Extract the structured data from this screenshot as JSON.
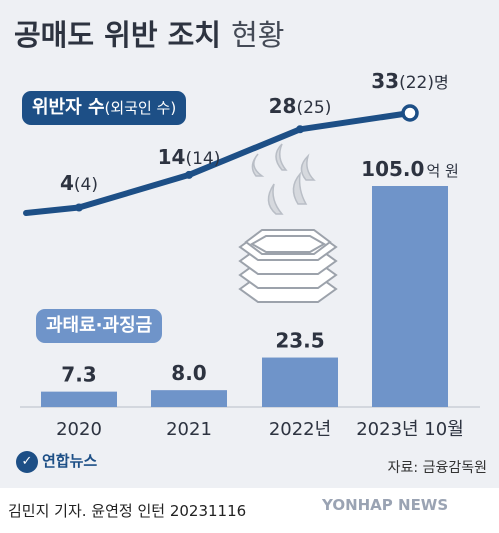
{
  "header": {
    "title_main": "공매도 위반 조치",
    "title_sub": "현황"
  },
  "chart_data": [
    {
      "type": "line",
      "legend_label": "위반자 수",
      "legend_sub": "(외국인 수)",
      "unit": "명",
      "categories": [
        "2020",
        "2021",
        "2022년",
        "2023년 10월"
      ],
      "series": [
        {
          "name": "위반자 수",
          "values": [
            4,
            14,
            28,
            33
          ]
        },
        {
          "name": "외국인 수",
          "values": [
            4,
            14,
            25,
            22
          ]
        }
      ],
      "color": "#1d4f86"
    },
    {
      "type": "bar",
      "legend_label": "과태료·과징금",
      "unit": "억 원",
      "categories": [
        "2020",
        "2021",
        "2022년",
        "2023년 10월"
      ],
      "values": [
        7.3,
        8.0,
        23.5,
        105.0
      ],
      "value_labels": [
        "7.3",
        "8.0",
        "23.5",
        "105.0"
      ],
      "ylim": [
        0,
        105
      ],
      "color": "#6f94c9"
    }
  ],
  "source": "자료: 금융감독원",
  "logo_text": "연합뉴스",
  "logo_icon": "yonhap-logo-icon",
  "credit": "김민지 기자. 윤연정 인턴  20231116",
  "watermark": "YONHAP NEWS",
  "decoration_icon": "money-stack-burning-icon"
}
